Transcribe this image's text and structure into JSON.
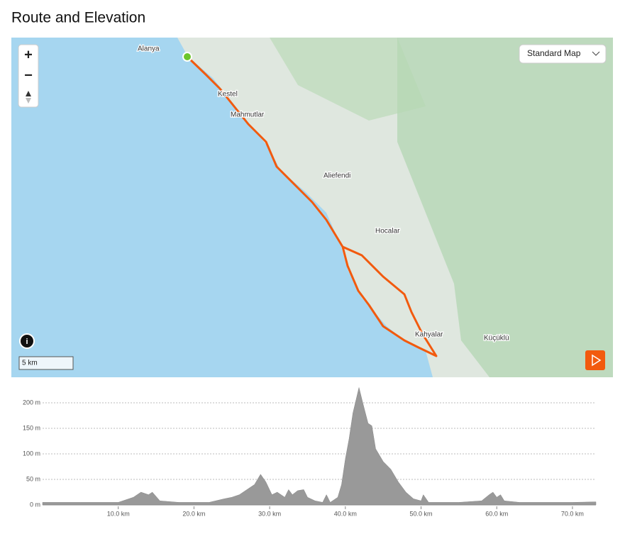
{
  "header": {
    "title": "Route and Elevation"
  },
  "map": {
    "labels": [
      "Alanya",
      "Kestel",
      "Mahmutlar",
      "Aliefendi",
      "Hocalar",
      "Kahyalar",
      "Küçüklü"
    ],
    "map_style": "Standard Map",
    "zoom_in": "+",
    "zoom_out": "−",
    "info": "i",
    "scale": "5 km"
  },
  "chart_data": {
    "type": "area",
    "color": "#999999",
    "x": [
      0,
      5,
      10,
      12,
      13,
      14,
      14.5,
      15.5,
      18,
      22,
      24,
      25,
      26,
      27,
      28,
      28.8,
      29.5,
      30.3,
      31,
      32,
      32.5,
      33,
      33.7,
      34.5,
      35,
      36,
      37,
      37.5,
      38,
      39,
      39.5,
      40,
      40.5,
      41,
      41.8,
      42.3,
      43,
      43.5,
      44,
      45,
      46,
      47,
      48,
      49,
      50,
      50.3,
      51,
      55,
      58,
      59,
      59.5,
      60,
      60.5,
      61,
      63,
      70,
      73.1
    ],
    "values": [
      5,
      5,
      5,
      15,
      25,
      20,
      25,
      8,
      5,
      5,
      12,
      15,
      20,
      30,
      40,
      60,
      45,
      20,
      25,
      15,
      30,
      20,
      28,
      30,
      15,
      8,
      5,
      20,
      5,
      15,
      40,
      90,
      130,
      180,
      230,
      200,
      160,
      155,
      110,
      85,
      70,
      45,
      25,
      12,
      8,
      20,
      5,
      5,
      8,
      20,
      25,
      15,
      20,
      8,
      5,
      5,
      6
    ],
    "xlim": [
      0,
      73.1
    ],
    "ylim": [
      0,
      232
    ],
    "xticks": [
      {
        "value": 10,
        "label": "10.0 km"
      },
      {
        "value": 20,
        "label": "20.0 km"
      },
      {
        "value": 30,
        "label": "30.0 km"
      },
      {
        "value": 40,
        "label": "40.0 km"
      },
      {
        "value": 50,
        "label": "50.0 km"
      },
      {
        "value": 60,
        "label": "60.0 km"
      },
      {
        "value": 70,
        "label": "70.0 km"
      }
    ],
    "yticks": [
      {
        "value": 0,
        "label": "0 m"
      },
      {
        "value": 50,
        "label": "50 m"
      },
      {
        "value": 100,
        "label": "100 m"
      },
      {
        "value": 150,
        "label": "150 m"
      },
      {
        "value": 200,
        "label": "200 m"
      }
    ],
    "grid": true
  }
}
